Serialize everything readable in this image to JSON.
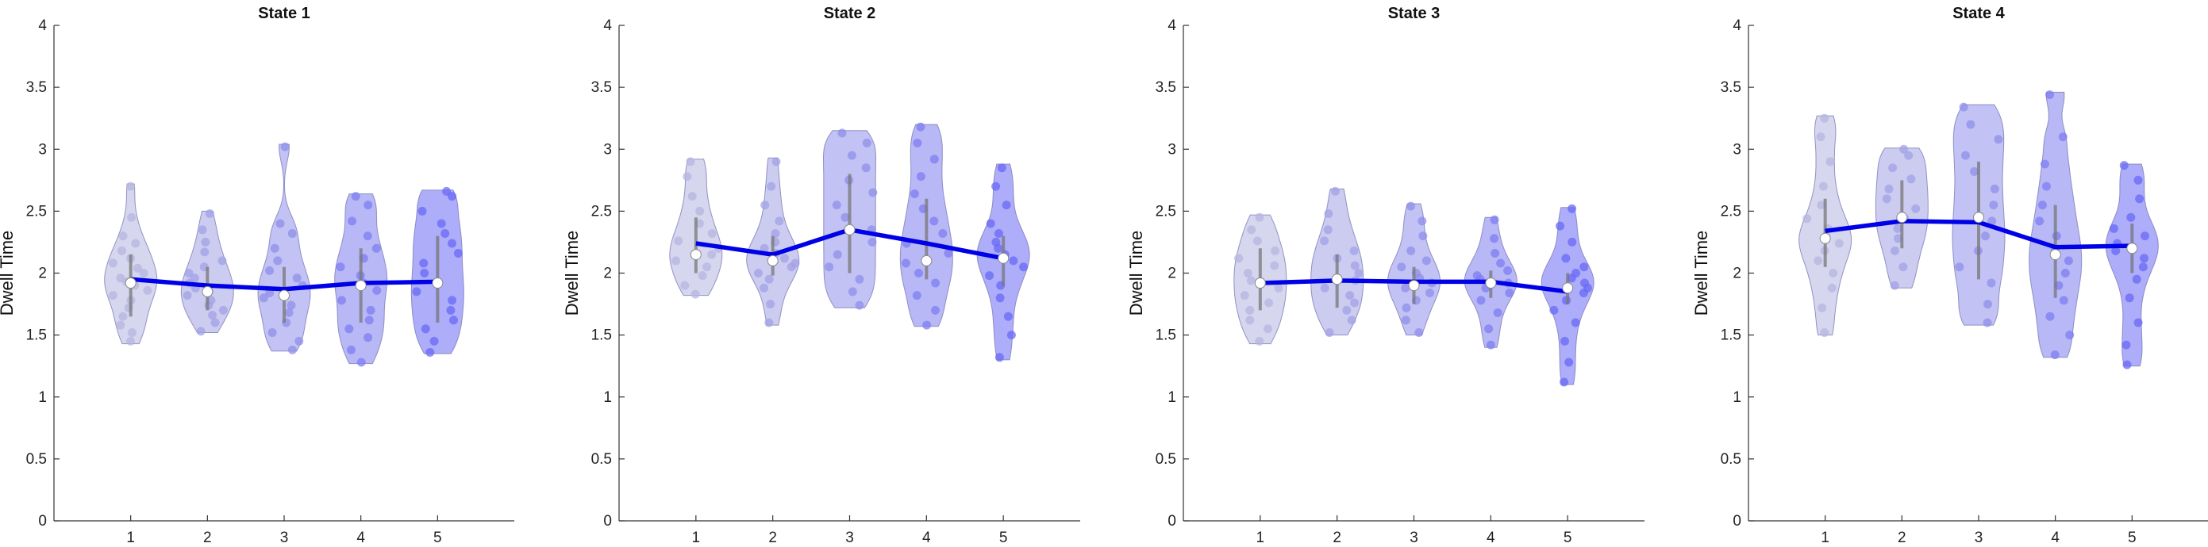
{
  "chart_data": [
    {
      "type": "violin",
      "title": "State 1",
      "xlabel": "",
      "ylabel": "Dwell Time",
      "categories": [
        "1",
        "2",
        "3",
        "4",
        "5"
      ],
      "ylim": [
        0,
        4
      ],
      "yticks": [
        "0",
        "0.5",
        "1",
        "1.5",
        "2",
        "2.5",
        "3",
        "3.5",
        "4"
      ],
      "grid": false,
      "colors": [
        "#b5b5e0",
        "#a2a2e6",
        "#8f8feb",
        "#7d7df0",
        "#6a6af5"
      ],
      "line_color": "#0000e6",
      "medians": [
        1.92,
        1.85,
        1.82,
        1.9,
        1.92
      ],
      "means": [
        1.95,
        1.9,
        1.87,
        1.92,
        1.93
      ],
      "ranges": [
        [
          1.43,
          2.72
        ],
        [
          1.52,
          2.5
        ],
        [
          1.37,
          3.04
        ],
        [
          1.27,
          2.64
        ],
        [
          1.35,
          2.67
        ]
      ],
      "q1": [
        1.65,
        1.7,
        1.6,
        1.6,
        1.6
      ],
      "q3": [
        2.15,
        2.05,
        2.05,
        2.2,
        2.3
      ],
      "points": [
        [
          1.45,
          1.52,
          1.58,
          1.65,
          1.72,
          1.78,
          1.82,
          1.86,
          1.9,
          1.93,
          1.96,
          2.0,
          2.04,
          2.08,
          2.12,
          2.18,
          2.24,
          2.3,
          2.45,
          2.7
        ],
        [
          1.53,
          1.6,
          1.66,
          1.7,
          1.74,
          1.78,
          1.82,
          1.85,
          1.88,
          1.92,
          1.96,
          2.0,
          2.05,
          2.1,
          2.17,
          2.25,
          2.35,
          2.48
        ],
        [
          1.38,
          1.45,
          1.52,
          1.6,
          1.68,
          1.74,
          1.8,
          1.84,
          1.9,
          1.96,
          2.02,
          2.1,
          2.2,
          2.32,
          2.4,
          3.02
        ],
        [
          1.28,
          1.38,
          1.48,
          1.55,
          1.62,
          1.7,
          1.78,
          1.86,
          1.92,
          1.98,
          2.05,
          2.12,
          2.2,
          2.3,
          2.42,
          2.55,
          2.62
        ],
        [
          1.36,
          1.45,
          1.55,
          1.62,
          1.7,
          1.78,
          1.85,
          1.92,
          2.0,
          2.08,
          2.16,
          2.24,
          2.32,
          2.4,
          2.5,
          2.62,
          2.66
        ]
      ]
    },
    {
      "type": "violin",
      "title": "State 2",
      "xlabel": "",
      "ylabel": "Dwell Time",
      "categories": [
        "1",
        "2",
        "3",
        "4",
        "5"
      ],
      "ylim": [
        0,
        4
      ],
      "yticks": [
        "0",
        "0.5",
        "1",
        "1.5",
        "2",
        "2.5",
        "3",
        "3.5",
        "4"
      ],
      "grid": false,
      "colors": [
        "#b5b5e0",
        "#a2a2e6",
        "#8f8feb",
        "#7d7df0",
        "#6a6af5"
      ],
      "line_color": "#0000e6",
      "medians": [
        2.15,
        2.1,
        2.35,
        2.1,
        2.12
      ],
      "means": [
        2.24,
        2.15,
        2.35,
        2.24,
        2.12
      ],
      "ranges": [
        [
          1.82,
          2.92
        ],
        [
          1.58,
          2.93
        ],
        [
          1.72,
          3.15
        ],
        [
          1.57,
          3.2
        ],
        [
          1.3,
          2.88
        ]
      ],
      "q1": [
        2.0,
        1.98,
        2.0,
        1.95,
        1.9
      ],
      "q3": [
        2.45,
        2.3,
        2.8,
        2.6,
        2.3
      ],
      "points": [
        [
          1.83,
          1.9,
          1.98,
          2.05,
          2.1,
          2.15,
          2.2,
          2.26,
          2.32,
          2.4,
          2.5,
          2.62,
          2.78,
          2.9
        ],
        [
          1.6,
          1.75,
          1.88,
          1.95,
          2.0,
          2.05,
          2.08,
          2.12,
          2.16,
          2.2,
          2.25,
          2.32,
          2.42,
          2.55,
          2.7,
          2.9
        ],
        [
          1.74,
          1.85,
          1.95,
          2.05,
          2.15,
          2.25,
          2.35,
          2.45,
          2.55,
          2.65,
          2.75,
          2.85,
          2.95,
          3.05,
          3.13
        ],
        [
          1.58,
          1.7,
          1.82,
          1.92,
          2.0,
          2.08,
          2.16,
          2.24,
          2.32,
          2.42,
          2.52,
          2.64,
          2.78,
          2.92,
          3.05,
          3.18
        ],
        [
          1.32,
          1.5,
          1.65,
          1.8,
          1.9,
          1.98,
          2.05,
          2.1,
          2.15,
          2.2,
          2.25,
          2.32,
          2.4,
          2.55,
          2.7,
          2.85
        ]
      ]
    },
    {
      "type": "violin",
      "title": "State 3",
      "xlabel": "",
      "ylabel": "Dwell Time",
      "categories": [
        "1",
        "2",
        "3",
        "4",
        "5"
      ],
      "ylim": [
        0,
        4
      ],
      "yticks": [
        "0",
        "0.5",
        "1",
        "1.5",
        "2",
        "2.5",
        "3",
        "3.5",
        "4"
      ],
      "grid": false,
      "colors": [
        "#b5b5e0",
        "#a2a2e6",
        "#8f8feb",
        "#7d7df0",
        "#6a6af5"
      ],
      "line_color": "#0000e6",
      "medians": [
        1.92,
        1.95,
        1.9,
        1.92,
        1.88
      ],
      "means": [
        1.92,
        1.94,
        1.93,
        1.93,
        1.85
      ],
      "ranges": [
        [
          1.43,
          2.47
        ],
        [
          1.5,
          2.68
        ],
        [
          1.5,
          2.56
        ],
        [
          1.4,
          2.45
        ],
        [
          1.1,
          2.53
        ]
      ],
      "q1": [
        1.7,
        1.72,
        1.75,
        1.8,
        1.75
      ],
      "q3": [
        2.2,
        2.15,
        2.05,
        2.02,
        2.0
      ],
      "points": [
        [
          1.45,
          1.55,
          1.62,
          1.7,
          1.76,
          1.82,
          1.88,
          1.94,
          2.0,
          2.06,
          2.12,
          2.18,
          2.26,
          2.35,
          2.45
        ],
        [
          1.52,
          1.62,
          1.7,
          1.76,
          1.82,
          1.88,
          1.94,
          2.0,
          2.06,
          2.12,
          2.18,
          2.26,
          2.35,
          2.48,
          2.66
        ],
        [
          1.52,
          1.62,
          1.72,
          1.78,
          1.84,
          1.88,
          1.92,
          1.96,
          2.0,
          2.05,
          2.1,
          2.18,
          2.3,
          2.42,
          2.54
        ],
        [
          1.42,
          1.55,
          1.68,
          1.78,
          1.84,
          1.88,
          1.92,
          1.95,
          1.98,
          2.02,
          2.08,
          2.16,
          2.28,
          2.43
        ],
        [
          1.12,
          1.28,
          1.45,
          1.6,
          1.7,
          1.78,
          1.84,
          1.88,
          1.92,
          1.96,
          2.0,
          2.05,
          2.12,
          2.25,
          2.38,
          2.52
        ]
      ]
    },
    {
      "type": "violin",
      "title": "State 4",
      "xlabel": "",
      "ylabel": "Dwell Time",
      "categories": [
        "1",
        "2",
        "3",
        "4",
        "5"
      ],
      "ylim": [
        0,
        4
      ],
      "yticks": [
        "0",
        "0.5",
        "1",
        "1.5",
        "2",
        "2.5",
        "3",
        "3.5",
        "4"
      ],
      "grid": false,
      "colors": [
        "#b5b5e0",
        "#a2a2e6",
        "#8f8feb",
        "#7d7df0",
        "#6a6af5"
      ],
      "line_color": "#0000e6",
      "medians": [
        2.28,
        2.45,
        2.45,
        2.15,
        2.2
      ],
      "means": [
        2.34,
        2.42,
        2.41,
        2.21,
        2.22
      ],
      "ranges": [
        [
          1.5,
          3.27
        ],
        [
          1.88,
          3.01
        ],
        [
          1.58,
          3.36
        ],
        [
          1.32,
          3.46
        ],
        [
          1.25,
          2.88
        ]
      ],
      "q1": [
        2.05,
        2.2,
        1.95,
        1.8,
        2.0
      ],
      "q3": [
        2.6,
        2.75,
        2.9,
        2.55,
        2.4
      ],
      "points": [
        [
          1.52,
          1.72,
          1.88,
          2.0,
          2.1,
          2.18,
          2.24,
          2.3,
          2.36,
          2.44,
          2.55,
          2.7,
          2.9,
          3.1,
          3.25
        ],
        [
          1.9,
          2.05,
          2.18,
          2.28,
          2.36,
          2.44,
          2.52,
          2.6,
          2.68,
          2.76,
          2.85,
          2.95,
          3.0
        ],
        [
          1.6,
          1.75,
          1.92,
          2.05,
          2.18,
          2.3,
          2.42,
          2.55,
          2.68,
          2.82,
          2.95,
          3.08,
          3.2,
          3.34
        ],
        [
          1.34,
          1.5,
          1.65,
          1.78,
          1.9,
          2.0,
          2.1,
          2.2,
          2.3,
          2.42,
          2.55,
          2.7,
          2.88,
          3.1,
          3.44
        ],
        [
          1.26,
          1.42,
          1.6,
          1.8,
          1.95,
          2.05,
          2.12,
          2.18,
          2.24,
          2.3,
          2.36,
          2.45,
          2.6,
          2.75,
          2.87
        ]
      ]
    }
  ]
}
